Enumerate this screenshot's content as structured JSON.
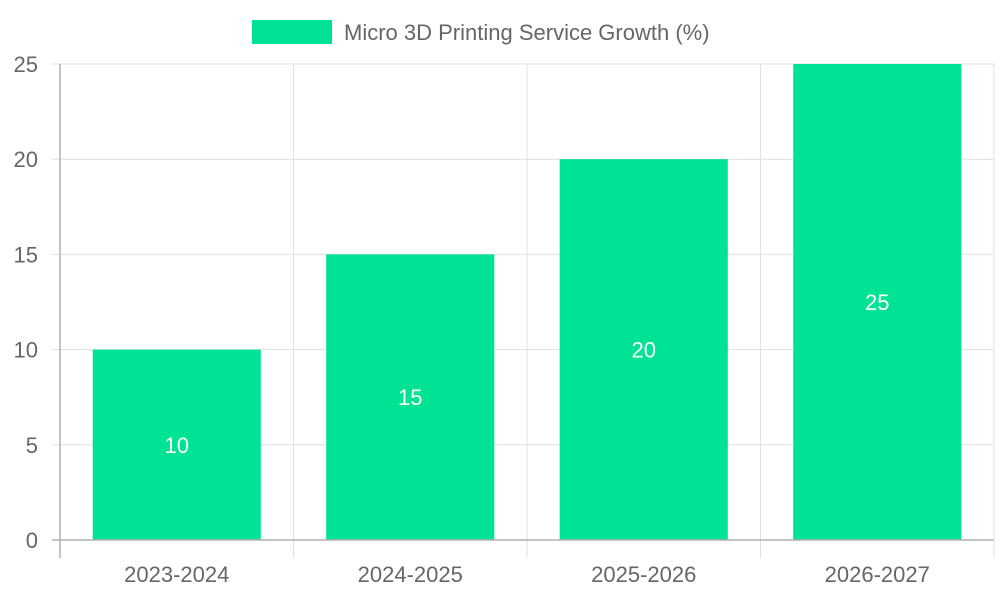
{
  "chart_data": {
    "type": "bar",
    "categories": [
      "2023-2024",
      "2024-2025",
      "2025-2026",
      "2026-2027"
    ],
    "series": [
      {
        "name": "Micro 3D Printing Service Growth (%)",
        "values": [
          10,
          15,
          20,
          25
        ],
        "color": "#00e394"
      }
    ],
    "data_labels": [
      "10",
      "15",
      "20",
      "25"
    ],
    "ylim": [
      0,
      25
    ],
    "yticks": [
      "0",
      "5",
      "10",
      "15",
      "20",
      "25"
    ],
    "grid": true,
    "legend_position": "top-center",
    "title": "",
    "xlabel": "",
    "ylabel": ""
  },
  "colors": {
    "grid": "#e0e0e0",
    "axis": "#b0b0b0",
    "text": "#666666",
    "label": "#ffffff"
  }
}
